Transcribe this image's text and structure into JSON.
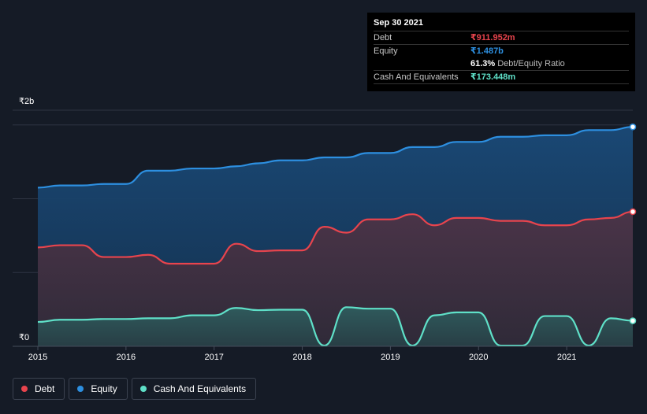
{
  "colors": {
    "debt": "#e8444d",
    "equity": "#2d8fe0",
    "cash": "#5fe0c8",
    "grid": "#2e3543",
    "axis": "#454c5a"
  },
  "tooltip": {
    "date": "Sep 30 2021",
    "debt_label": "Debt",
    "debt_value": "₹911.952m",
    "equity_label": "Equity",
    "equity_value": "₹1.487b",
    "ratio_pct": "61.3%",
    "ratio_label": "Debt/Equity Ratio",
    "cash_label": "Cash And Equivalents",
    "cash_value": "₹173.448m"
  },
  "legend": {
    "debt": "Debt",
    "equity": "Equity",
    "cash": "Cash And Equivalents"
  },
  "chart_data": {
    "type": "area",
    "title": "",
    "xlabel": "",
    "ylabel": "",
    "xlim": [
      2015.0,
      2021.75
    ],
    "ylim": [
      0,
      1600
    ],
    "x_ticks": [
      2015,
      2016,
      2017,
      2018,
      2019,
      2020,
      2021
    ],
    "x_tick_labels": [
      "2015",
      "2016",
      "2017",
      "2018",
      "2019",
      "2020",
      "2021"
    ],
    "y_tick_labels": [
      {
        "value": 1600,
        "label": "₹2b"
      },
      {
        "value": 0,
        "label": "₹0"
      }
    ],
    "gridlines": [
      1500,
      1000,
      500
    ],
    "series": [
      {
        "name": "Equity",
        "key": "equity",
        "x": [
          2015.0,
          2015.25,
          2015.5,
          2015.75,
          2016.0,
          2016.25,
          2016.5,
          2016.75,
          2017.0,
          2017.25,
          2017.5,
          2017.75,
          2018.0,
          2018.25,
          2018.5,
          2018.75,
          2019.0,
          2019.25,
          2019.5,
          2019.75,
          2020.0,
          2020.25,
          2020.5,
          2020.75,
          2021.0,
          2021.25,
          2021.5,
          2021.75
        ],
        "values": [
          1075,
          1090,
          1090,
          1100,
          1100,
          1190,
          1190,
          1205,
          1205,
          1220,
          1240,
          1260,
          1260,
          1280,
          1280,
          1310,
          1310,
          1350,
          1350,
          1385,
          1385,
          1420,
          1420,
          1430,
          1430,
          1465,
          1465,
          1487
        ]
      },
      {
        "name": "Debt",
        "key": "debt",
        "x": [
          2015.0,
          2015.25,
          2015.5,
          2015.75,
          2016.0,
          2016.25,
          2016.5,
          2016.75,
          2017.0,
          2017.25,
          2017.5,
          2017.75,
          2018.0,
          2018.25,
          2018.5,
          2018.75,
          2019.0,
          2019.25,
          2019.5,
          2019.75,
          2020.0,
          2020.25,
          2020.5,
          2020.75,
          2021.0,
          2021.25,
          2021.5,
          2021.75
        ],
        "values": [
          670,
          685,
          685,
          605,
          605,
          620,
          560,
          560,
          560,
          695,
          645,
          650,
          650,
          810,
          770,
          860,
          860,
          895,
          820,
          870,
          870,
          850,
          850,
          820,
          820,
          860,
          870,
          912
        ]
      },
      {
        "name": "Cash And Equivalents",
        "key": "cash",
        "x": [
          2015.0,
          2015.25,
          2015.5,
          2015.75,
          2016.0,
          2016.25,
          2016.5,
          2016.75,
          2017.0,
          2017.25,
          2017.5,
          2017.75,
          2018.0,
          2018.25,
          2018.5,
          2018.75,
          2019.0,
          2019.25,
          2019.5,
          2019.75,
          2020.0,
          2020.25,
          2020.5,
          2020.75,
          2021.0,
          2021.25,
          2021.5,
          2021.75
        ],
        "values": [
          165,
          180,
          180,
          185,
          185,
          190,
          190,
          210,
          210,
          260,
          245,
          248,
          248,
          5,
          265,
          255,
          255,
          5,
          210,
          230,
          230,
          5,
          5,
          205,
          205,
          5,
          190,
          173
        ]
      }
    ]
  }
}
